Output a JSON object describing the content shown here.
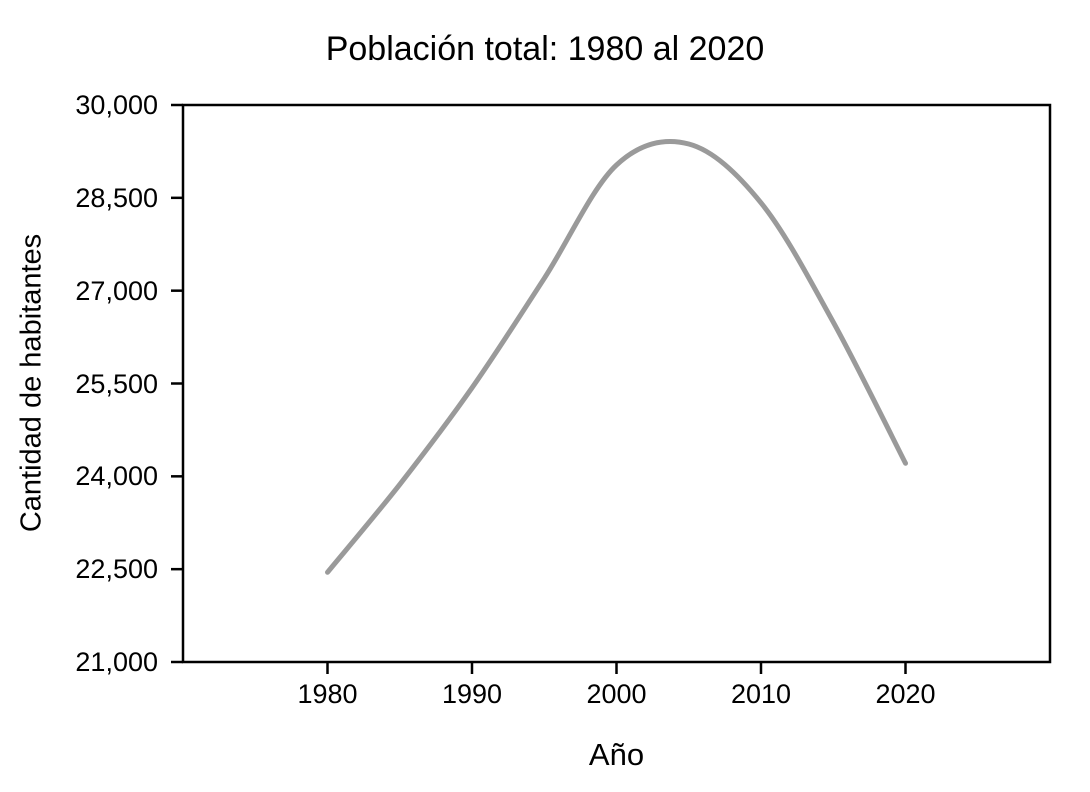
{
  "chart_data": {
    "type": "line",
    "title": "Población total: 1980 al 2020",
    "xlabel": "Año",
    "ylabel": "Cantidad de habitantes",
    "series_name": "Población total",
    "x": [
      1980,
      1985,
      1990,
      1995,
      2000,
      2005,
      2010,
      2015,
      2020
    ],
    "values": [
      22450,
      23870,
      25430,
      27200,
      29030,
      29370,
      28420,
      26490,
      24210
    ],
    "xlim": [
      1970,
      2030
    ],
    "ylim": [
      21000,
      30000
    ],
    "xticks": [
      1980,
      1990,
      2000,
      2010,
      2020
    ],
    "xtick_labels": [
      "1980",
      "1990",
      "2000",
      "2010",
      "2020"
    ],
    "yticks": [
      21000,
      22500,
      24000,
      25500,
      27000,
      28500,
      30000
    ],
    "ytick_labels": [
      "21,000",
      "22,500",
      "24,000",
      "25,500",
      "27,000",
      "28,500",
      "30,000"
    ],
    "grid": false,
    "legend": "none",
    "frame": "full-box",
    "line_color": "#9a9a9a",
    "axis_color": "#000000",
    "background_color": "#ffffff"
  }
}
